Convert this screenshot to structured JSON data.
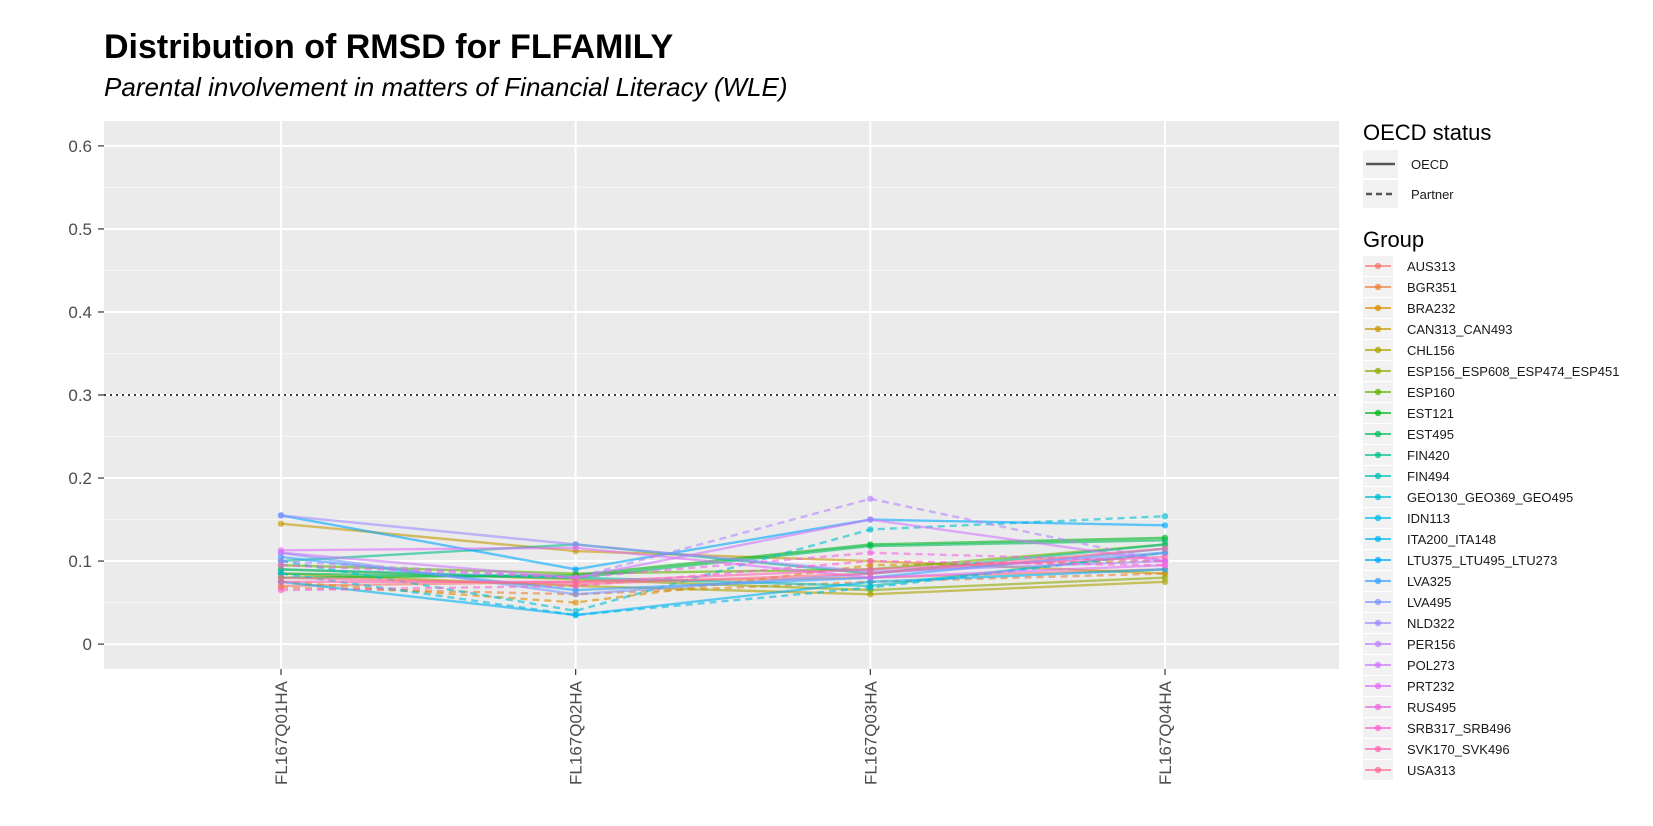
{
  "chart_data": {
    "type": "line",
    "title": "Distribution of RMSD for FLFAMILY",
    "subtitle": "Parental involvement in matters of Financial Literacy (WLE)",
    "xlabel": "",
    "ylabel": "",
    "x": [
      "FL167Q01HA",
      "FL167Q02HA",
      "FL167Q03HA",
      "FL167Q04HA"
    ],
    "y_ticks": [
      "0",
      "0.1",
      "0.2",
      "0.3",
      "0.4",
      "0.5",
      "0.6"
    ],
    "ylim": [
      -0.03,
      0.63
    ],
    "reference_line": {
      "y": 0.3,
      "style": "dotted"
    },
    "grid": true,
    "background": "#ebebeb",
    "legend_position": "right",
    "legend_linetype": {
      "title": "OECD status",
      "items": [
        {
          "label": "OECD",
          "dash": "solid"
        },
        {
          "label": "Partner",
          "dash": "dashed"
        }
      ]
    },
    "legend_group_title": "Group",
    "series": [
      {
        "name": "AUS313",
        "color": "#F8766D",
        "status": "OECD",
        "values": [
          0.07,
          0.075,
          0.08,
          0.09
        ]
      },
      {
        "name": "BGR351",
        "color": "#EC8239",
        "status": "Partner",
        "values": [
          0.068,
          0.06,
          0.075,
          0.085
        ]
      },
      {
        "name": "BRA232",
        "color": "#DB8E00",
        "status": "Partner",
        "values": [
          0.075,
          0.05,
          0.095,
          0.1
        ]
      },
      {
        "name": "CAN313_CAN493",
        "color": "#C79800",
        "status": "OECD",
        "values": [
          0.145,
          0.112,
          0.1,
          0.085
        ]
      },
      {
        "name": "CHL156",
        "color": "#AEA200",
        "status": "OECD",
        "values": [
          0.085,
          0.07,
          0.06,
          0.075
        ]
      },
      {
        "name": "ESP156_ESP608_ESP474_ESP451",
        "color": "#8FAA00",
        "status": "OECD",
        "values": [
          0.09,
          0.078,
          0.065,
          0.08
        ]
      },
      {
        "name": "ESP160",
        "color": "#64B200",
        "status": "OECD",
        "values": [
          0.095,
          0.085,
          0.09,
          0.12
        ]
      },
      {
        "name": "EST121",
        "color": "#00B81B",
        "status": "OECD",
        "values": [
          0.08,
          0.083,
          0.12,
          0.128
        ]
      },
      {
        "name": "EST495",
        "color": "#00BD5C",
        "status": "OECD",
        "values": [
          0.085,
          0.08,
          0.118,
          0.125
        ]
      },
      {
        "name": "FIN420",
        "color": "#00C08E",
        "status": "OECD",
        "values": [
          0.1,
          0.12,
          0.085,
          0.12
        ]
      },
      {
        "name": "FIN494",
        "color": "#00C1B2",
        "status": "OECD",
        "values": [
          0.09,
          0.08,
          0.07,
          0.11
        ]
      },
      {
        "name": "GEO130_GEO369_GEO495",
        "color": "#00BFD0",
        "status": "Partner",
        "values": [
          0.1,
          0.04,
          0.138,
          0.154
        ]
      },
      {
        "name": "IDN113",
        "color": "#00BAE9",
        "status": "Partner",
        "values": [
          0.085,
          0.035,
          0.068,
          0.11
        ]
      },
      {
        "name": "ITA200_ITA148",
        "color": "#00B3F4",
        "status": "OECD",
        "values": [
          0.075,
          0.035,
          0.075,
          0.09
        ]
      },
      {
        "name": "LTU375_LTU495_LTU273",
        "color": "#00A8FF",
        "status": "OECD",
        "values": [
          0.155,
          0.09,
          0.15,
          0.143
        ]
      },
      {
        "name": "LVA325",
        "color": "#35A2FF",
        "status": "OECD",
        "values": [
          0.105,
          0.065,
          0.08,
          0.115
        ]
      },
      {
        "name": "LVA495",
        "color": "#7C97FF",
        "status": "OECD",
        "values": [
          0.11,
          0.06,
          0.085,
          0.11
        ]
      },
      {
        "name": "NLD322",
        "color": "#9E8CFF",
        "status": "OECD",
        "values": [
          0.155,
          0.12,
          0.087,
          0.1
        ]
      },
      {
        "name": "PER156",
        "color": "#B983FF",
        "status": "Partner",
        "values": [
          0.1,
          0.08,
          0.175,
          0.1
        ]
      },
      {
        "name": "POL273",
        "color": "#CF78FF",
        "status": "OECD",
        "values": [
          0.11,
          0.08,
          0.15,
          0.1
        ]
      },
      {
        "name": "PRT232",
        "color": "#E06EF8",
        "status": "OECD",
        "values": [
          0.113,
          0.116,
          0.08,
          0.095
        ]
      },
      {
        "name": "RUS495",
        "color": "#EE67E2",
        "status": "Partner",
        "values": [
          0.095,
          0.08,
          0.11,
          0.1
        ]
      },
      {
        "name": "SRB317_SRB496",
        "color": "#FA62D3",
        "status": "Partner",
        "values": [
          0.065,
          0.07,
          0.1,
          0.095
        ]
      },
      {
        "name": "SVK170_SVK496",
        "color": "#FF63B6",
        "status": "OECD",
        "values": [
          0.075,
          0.075,
          0.09,
          0.105
        ]
      },
      {
        "name": "USA313",
        "color": "#FF6C91",
        "status": "OECD",
        "values": [
          0.08,
          0.072,
          0.085,
          0.115
        ]
      }
    ]
  }
}
